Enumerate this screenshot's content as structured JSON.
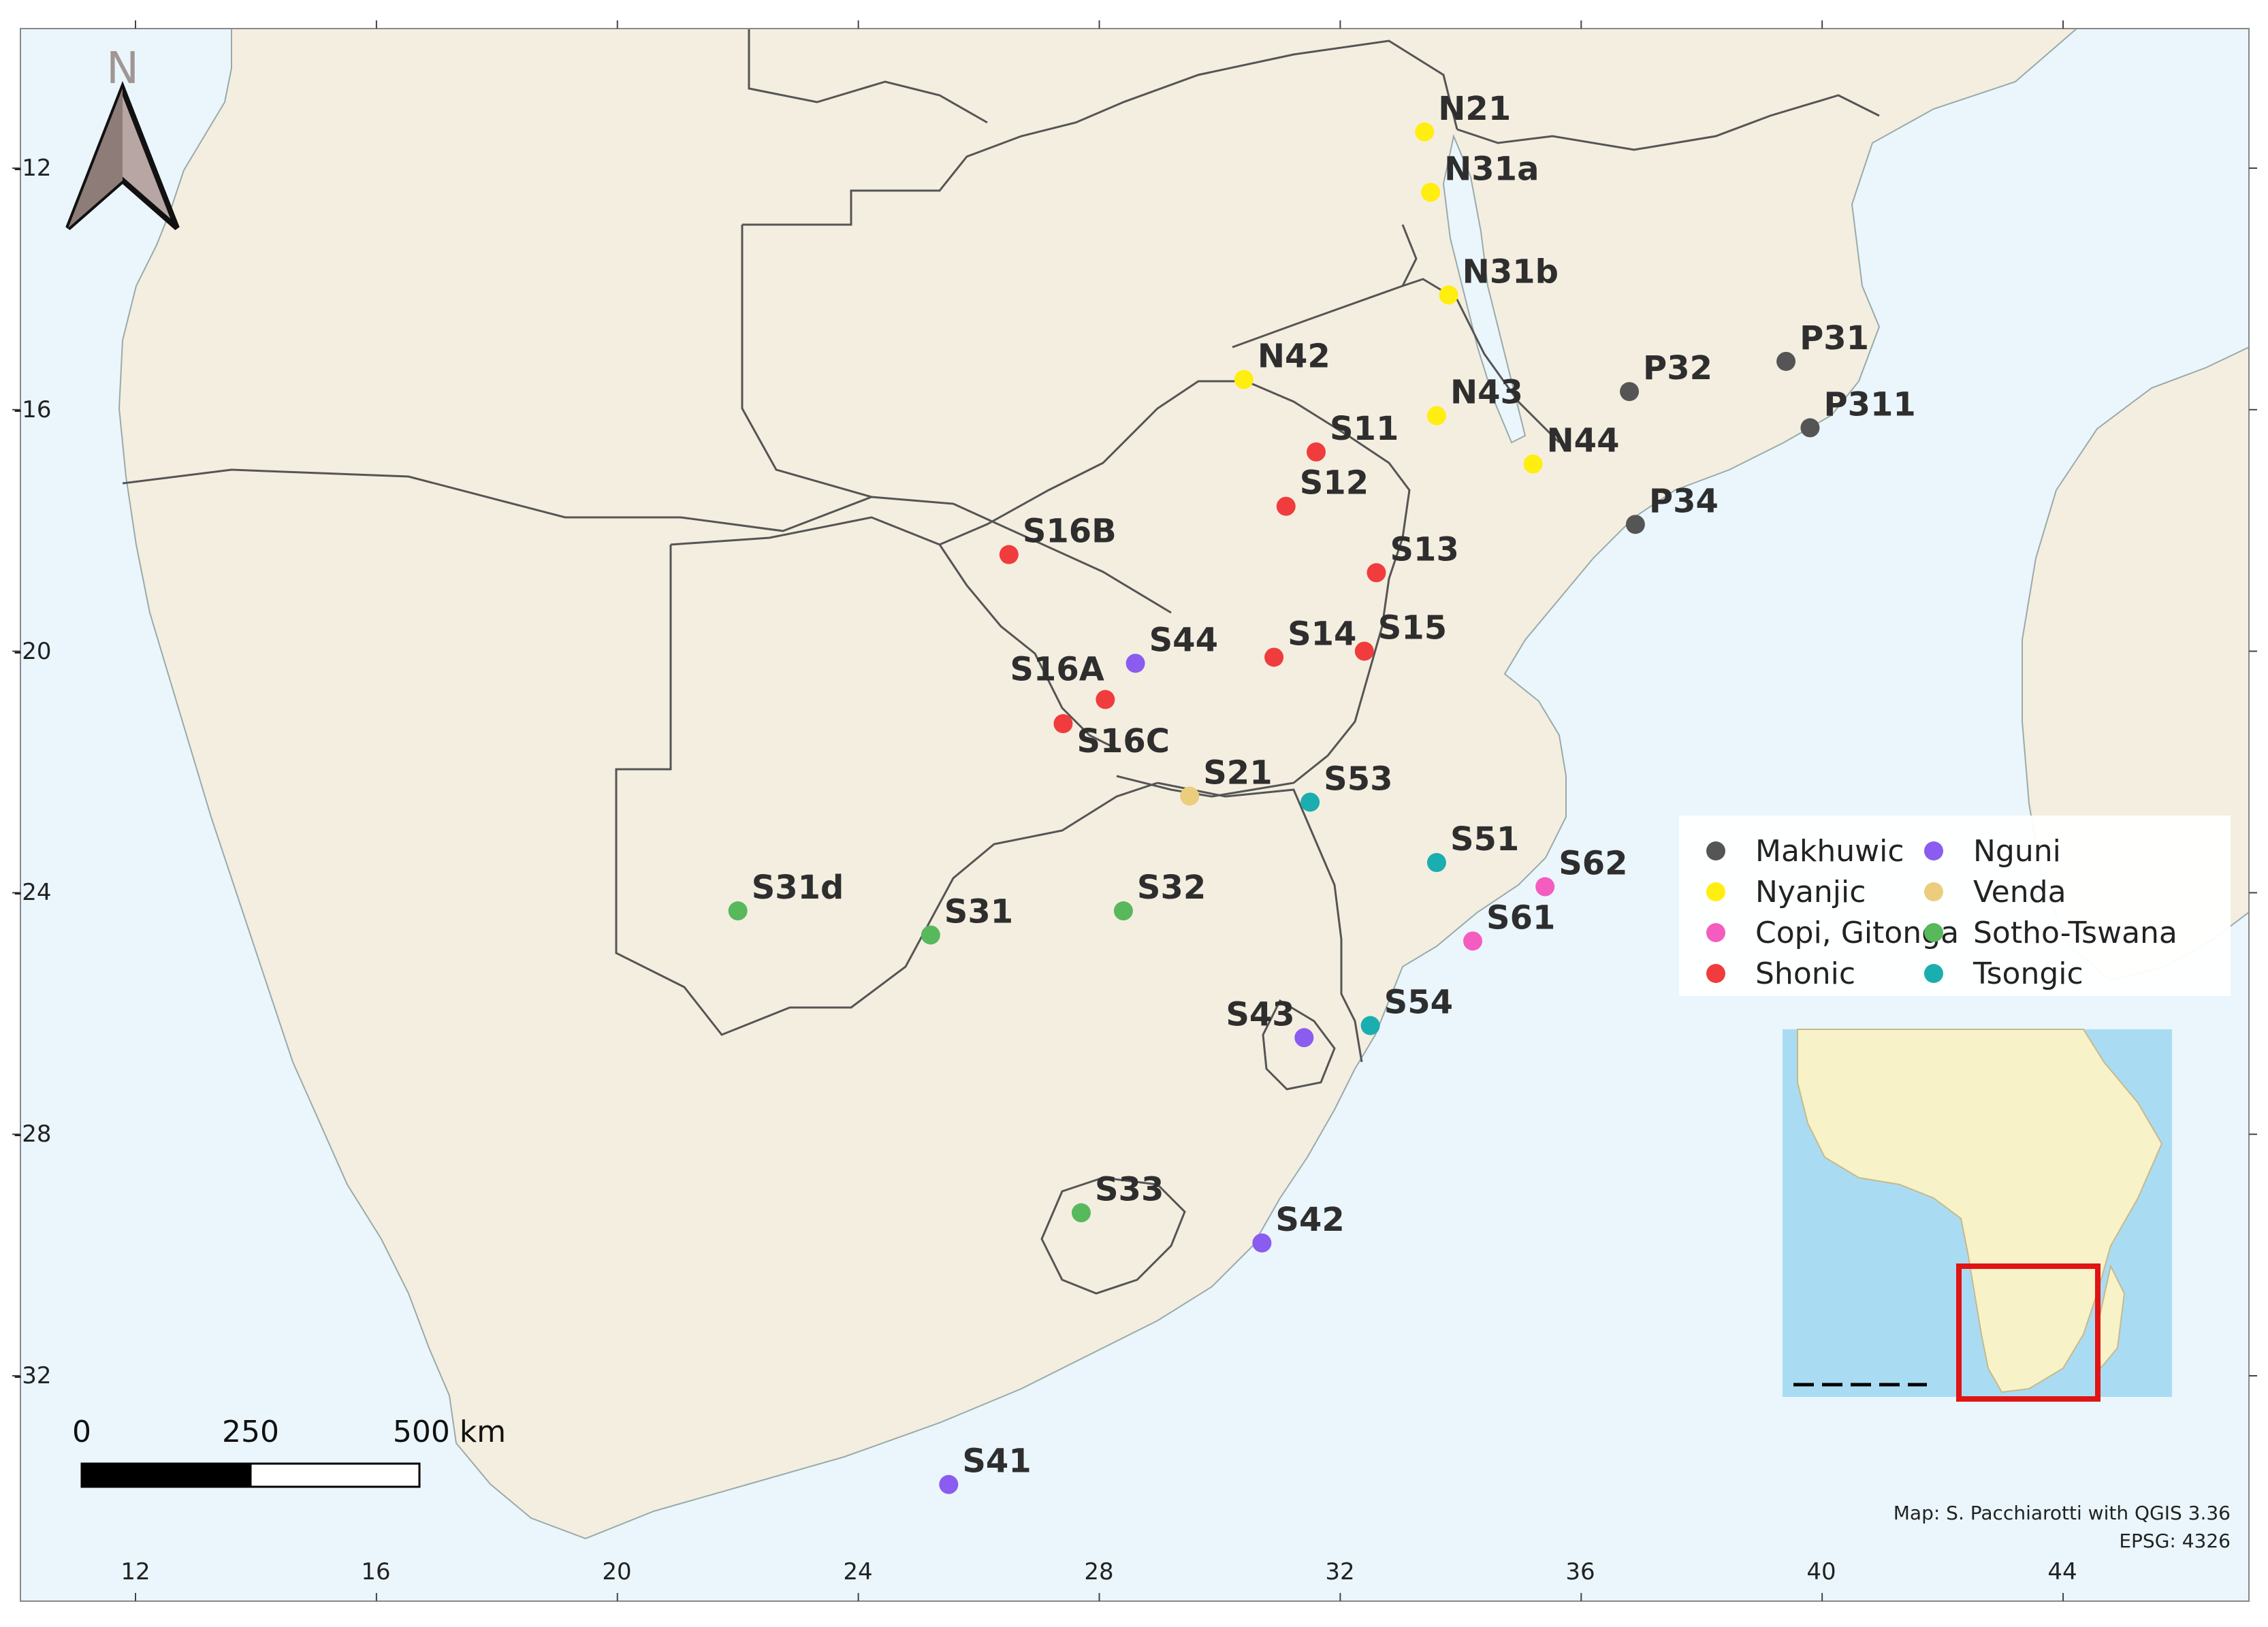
{
  "north_arrow": {
    "label": "N"
  },
  "axes": {
    "lon_ticks": [
      "12",
      "16",
      "20",
      "24",
      "28",
      "32",
      "36",
      "40",
      "44"
    ],
    "lat_ticks": [
      "-12",
      "-16",
      "-20",
      "-24",
      "-28",
      "-32"
    ]
  },
  "scale_bar": {
    "labels": [
      "0",
      "250",
      "500 km"
    ]
  },
  "credit": {
    "line1": "Map: S. Pacchiarotti with QGIS 3.36",
    "line2": "EPSG: 4326"
  },
  "legend": [
    {
      "label": "Makhuwic",
      "color": "#555555"
    },
    {
      "label": "Nyanjic",
      "color": "#ffee10"
    },
    {
      "label": "Copi, Gitonga",
      "color": "#f55cc0"
    },
    {
      "label": "Shonic",
      "color": "#f03c3c"
    },
    {
      "label": "Nguni",
      "color": "#8a5cf0"
    },
    {
      "label": "Venda",
      "color": "#eccd7e"
    },
    {
      "label": "Sotho-Tswana",
      "color": "#58b85c"
    },
    {
      "label": "Tsongic",
      "color": "#1aaeb0"
    }
  ],
  "sites": [
    {
      "name": "N21",
      "group": "Nyanjic",
      "lon": 33.4,
      "lat": -11.4
    },
    {
      "name": "N31a",
      "group": "Nyanjic",
      "lon": 33.5,
      "lat": -12.4
    },
    {
      "name": "N31b",
      "group": "Nyanjic",
      "lon": 33.8,
      "lat": -14.1
    },
    {
      "name": "N42",
      "group": "Nyanjic",
      "lon": 30.4,
      "lat": -15.5
    },
    {
      "name": "N43",
      "group": "Nyanjic",
      "lon": 33.6,
      "lat": -16.1
    },
    {
      "name": "N44",
      "group": "Nyanjic",
      "lon": 35.2,
      "lat": -16.9
    },
    {
      "name": "P31",
      "group": "Makhuwic",
      "lon": 39.4,
      "lat": -15.2
    },
    {
      "name": "P32",
      "group": "Makhuwic",
      "lon": 36.8,
      "lat": -15.7
    },
    {
      "name": "P311",
      "group": "Makhuwic",
      "lon": 39.8,
      "lat": -16.3
    },
    {
      "name": "P34",
      "group": "Makhuwic",
      "lon": 36.9,
      "lat": -17.9
    },
    {
      "name": "S11",
      "group": "Shonic",
      "lon": 31.6,
      "lat": -16.7
    },
    {
      "name": "S12",
      "group": "Shonic",
      "lon": 31.1,
      "lat": -17.6
    },
    {
      "name": "S13",
      "group": "Shonic",
      "lon": 32.6,
      "lat": -18.7
    },
    {
      "name": "S14",
      "group": "Shonic",
      "lon": 30.9,
      "lat": -20.1
    },
    {
      "name": "S15",
      "group": "Shonic",
      "lon": 32.4,
      "lat": -20.0
    },
    {
      "name": "S16B",
      "group": "Shonic",
      "lon": 26.5,
      "lat": -18.4
    },
    {
      "name": "S16A",
      "group": "Shonic",
      "lon": 28.1,
      "lat": -20.8
    },
    {
      "name": "S16C",
      "group": "Shonic",
      "lon": 27.4,
      "lat": -21.2
    },
    {
      "name": "S44",
      "group": "Nguni",
      "lon": 28.6,
      "lat": -20.2
    },
    {
      "name": "S21",
      "group": "Venda",
      "lon": 29.5,
      "lat": -22.4
    },
    {
      "name": "S53",
      "group": "Tsongic",
      "lon": 31.5,
      "lat": -22.5
    },
    {
      "name": "S51",
      "group": "Tsongic",
      "lon": 33.6,
      "lat": -23.5
    },
    {
      "name": "S62",
      "group": "Copi, Gitonga",
      "lon": 35.4,
      "lat": -23.9
    },
    {
      "name": "S61",
      "group": "Copi, Gitonga",
      "lon": 34.2,
      "lat": -24.8
    },
    {
      "name": "S31d",
      "group": "Sotho-Tswana",
      "lon": 22.0,
      "lat": -24.3
    },
    {
      "name": "S31",
      "group": "Sotho-Tswana",
      "lon": 25.2,
      "lat": -24.7
    },
    {
      "name": "S32",
      "group": "Sotho-Tswana",
      "lon": 28.4,
      "lat": -24.3
    },
    {
      "name": "S43",
      "group": "Nguni",
      "lon": 31.4,
      "lat": -26.4
    },
    {
      "name": "S54",
      "group": "Tsongic",
      "lon": 32.5,
      "lat": -26.2
    },
    {
      "name": "S33",
      "group": "Sotho-Tswana",
      "lon": 27.7,
      "lat": -29.3
    },
    {
      "name": "S42",
      "group": "Nguni",
      "lon": 30.7,
      "lat": -29.8
    },
    {
      "name": "S41",
      "group": "Nguni",
      "lon": 25.5,
      "lat": -33.8
    }
  ]
}
